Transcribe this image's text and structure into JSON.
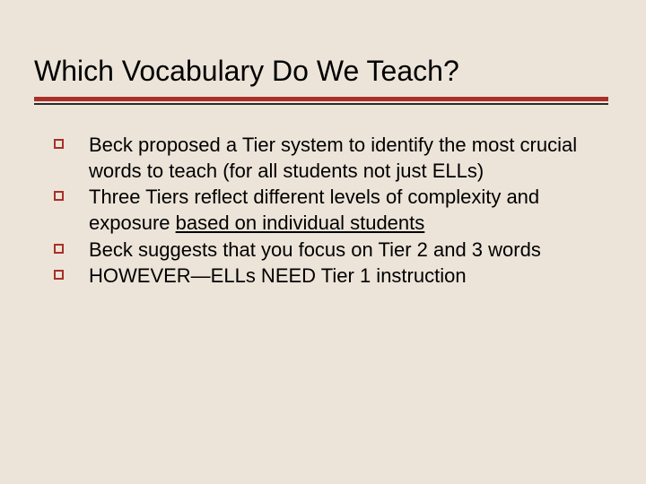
{
  "background_color": "#ece4d9",
  "accent_color": "#a83028",
  "text_color": "#000000",
  "title_fontsize": 32,
  "body_fontsize": 22,
  "title": "Which Vocabulary Do We Teach?",
  "bullets": [
    {
      "text": "Beck proposed a Tier system to identify the most crucial words to teach (for all students not just ELLs)"
    },
    {
      "pre": "Three Tiers reflect different levels of complexity and exposure ",
      "underlined": "based on individual students"
    },
    {
      "text": "Beck suggests that you focus on Tier 2 and 3 words"
    },
    {
      "text": "HOWEVER—ELLs NEED Tier 1 instruction"
    }
  ]
}
